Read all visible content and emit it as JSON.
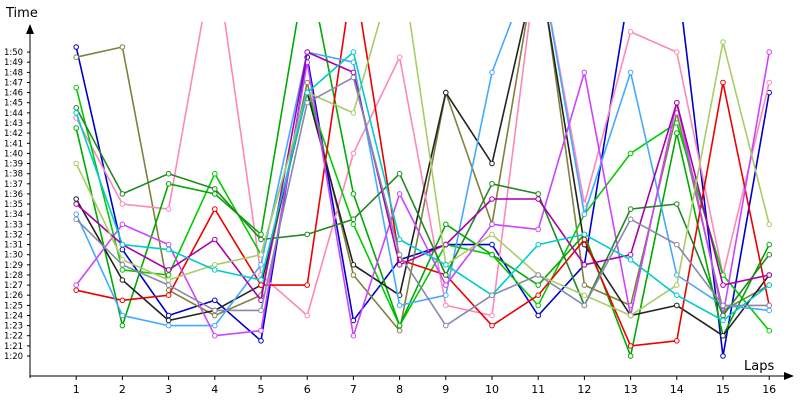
{
  "chart_data": {
    "type": "line",
    "xlabel": "Laps",
    "ylabel": "Time",
    "x": [
      1,
      2,
      3,
      4,
      5,
      6,
      7,
      8,
      9,
      10,
      11,
      12,
      13,
      14,
      15,
      16
    ],
    "xlim": [
      0,
      16.2
    ],
    "ylim": [
      78,
      118
    ],
    "y_ticks": [
      "1:20",
      "1:21",
      "1:22",
      "1:23",
      "1:24",
      "1:25",
      "1:26",
      "1:27",
      "1:28",
      "1:29",
      "1:30",
      "1:31",
      "1:32",
      "1:33",
      "1:34",
      "1:35",
      "1:36",
      "1:37",
      "1:38",
      "1:39",
      "1:40",
      "1:41",
      "1:42",
      "1:43",
      "1:44",
      "1:45",
      "1:46",
      "1:47",
      "1:48",
      "1:49",
      "1:50"
    ],
    "x_ticks": [
      "1",
      "2",
      "3",
      "4",
      "5",
      "6",
      "7",
      "8",
      "9",
      "10",
      "11",
      "12",
      "13",
      "14",
      "15",
      "16"
    ],
    "grid": false,
    "legend": "none",
    "series": [
      {
        "color": "#0000cc",
        "values": [
          110.5,
          90.5,
          84,
          85.5,
          81.5,
          109.5,
          83.5,
          89.5,
          91,
          91,
          84,
          89,
          117,
          118,
          80,
          106
        ]
      },
      {
        "color": "#808040",
        "values": [
          109.5,
          110.5,
          86.5,
          84,
          86,
          107,
          88,
          82.5,
          106,
          93,
          120,
          87,
          85,
          104,
          84.5,
          87
        ]
      },
      {
        "color": "#ff88bb",
        "values": [
          103.5,
          95,
          94.5,
          120,
          88,
          84,
          100,
          109.5,
          85,
          84,
          120,
          95,
          112,
          110,
          88,
          107
        ]
      },
      {
        "color": "#00cc00",
        "values": [
          106.5,
          88.5,
          88,
          98,
          90,
          106,
          93,
          83,
          91,
          90,
          85,
          94,
          100,
          103,
          88,
          82.5
        ]
      },
      {
        "color": "#00aa00",
        "values": [
          102.5,
          83,
          97,
          96,
          92,
          119,
          96,
          83,
          93,
          90,
          87,
          92,
          80,
          102,
          82,
          91
        ]
      },
      {
        "color": "#222222",
        "values": [
          95.5,
          87.5,
          83.5,
          84.5,
          87,
          106,
          89,
          86,
          106,
          99,
          119,
          91,
          84,
          85,
          82,
          88
        ]
      },
      {
        "color": "#ee0000",
        "values": [
          86.5,
          85.5,
          86,
          94.5,
          87,
          87,
          118,
          89.5,
          88,
          83,
          86,
          91.5,
          81,
          81.5,
          107,
          85
        ]
      },
      {
        "color": "#44aaff",
        "values": [
          94,
          84,
          83,
          83,
          89,
          110,
          109,
          85,
          86,
          108,
          120,
          94,
          108,
          88,
          85,
          84.5
        ]
      },
      {
        "color": "#cc44ff",
        "values": [
          87,
          93,
          91,
          82,
          82.5,
          109,
          82,
          96,
          87,
          93,
          92.5,
          108,
          84,
          105,
          84,
          110
        ]
      },
      {
        "color": "#228822",
        "values": [
          104.5,
          96,
          98,
          96.5,
          91.5,
          92,
          93.5,
          98,
          88,
          97,
          96,
          85,
          94.5,
          95,
          84,
          90
        ]
      },
      {
        "color": "#aa00aa",
        "values": [
          95,
          91,
          88.5,
          91.5,
          85.5,
          110,
          108,
          89,
          91,
          95.5,
          95.5,
          89,
          90,
          105,
          87,
          88
        ]
      },
      {
        "color": "#aacc66",
        "values": [
          99,
          89.5,
          87.5,
          89,
          90,
          106,
          104,
          120,
          89,
          92,
          88,
          86,
          84,
          87,
          111,
          93
        ]
      },
      {
        "color": "#00cccc",
        "values": [
          104,
          91,
          90.5,
          88.5,
          87.5,
          106,
          110,
          91.5,
          89,
          86,
          91,
          92,
          89.5,
          86,
          83.5,
          87
        ]
      },
      {
        "color": "#8888aa",
        "values": [
          93.5,
          89,
          87,
          84.5,
          84.5,
          105,
          107.5,
          90,
          83,
          86,
          88,
          85,
          93.5,
          91,
          85,
          85
        ]
      }
    ]
  }
}
